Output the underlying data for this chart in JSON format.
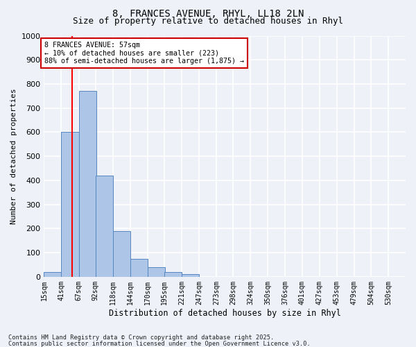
{
  "title1": "8, FRANCES AVENUE, RHYL, LL18 2LN",
  "title2": "Size of property relative to detached houses in Rhyl",
  "xlabel": "Distribution of detached houses by size in Rhyl",
  "ylabel": "Number of detached properties",
  "bin_labels": [
    "15sqm",
    "41sqm",
    "67sqm",
    "92sqm",
    "118sqm",
    "144sqm",
    "170sqm",
    "195sqm",
    "221sqm",
    "247sqm",
    "273sqm",
    "298sqm",
    "324sqm",
    "350sqm",
    "376sqm",
    "401sqm",
    "427sqm",
    "453sqm",
    "479sqm",
    "504sqm",
    "530sqm"
  ],
  "bin_left_edges": [
    15,
    41,
    67,
    92,
    118,
    144,
    170,
    195,
    221,
    247,
    273,
    298,
    324,
    350,
    376,
    401,
    427,
    453,
    479,
    504,
    530
  ],
  "bar_heights": [
    20,
    600,
    770,
    420,
    190,
    75,
    40,
    20,
    10,
    0,
    0,
    0,
    0,
    0,
    0,
    0,
    0,
    0,
    0,
    0
  ],
  "bar_color": "#adc6e8",
  "bar_edge_color": "#5585c0",
  "red_line_x": 57,
  "annotation_text": "8 FRANCES AVENUE: 57sqm\n← 10% of detached houses are smaller (223)\n88% of semi-detached houses are larger (1,875) →",
  "annotation_box_facecolor": "#ffffff",
  "annotation_box_edgecolor": "#cc0000",
  "ylim": [
    0,
    1000
  ],
  "yticks": [
    0,
    100,
    200,
    300,
    400,
    500,
    600,
    700,
    800,
    900,
    1000
  ],
  "bg_color": "#eef2f8",
  "grid_color": "#ffffff",
  "footer1": "Contains HM Land Registry data © Crown copyright and database right 2025.",
  "footer2": "Contains public sector information licensed under the Open Government Licence v3.0."
}
